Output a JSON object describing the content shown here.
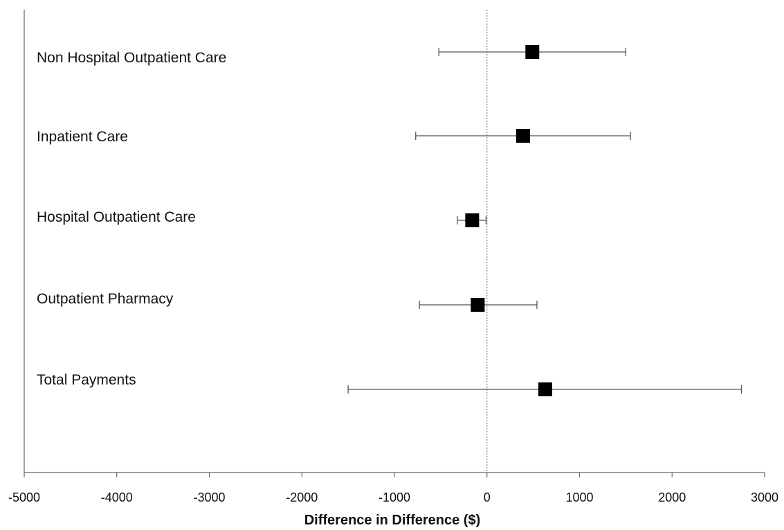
{
  "chart_data": {
    "type": "scatter",
    "subtype": "forest-plot",
    "title": "",
    "xlabel": "Difference in Difference ($)",
    "ylabel": "",
    "xlim": [
      -5000,
      3000
    ],
    "xticks": [
      -5000,
      -4000,
      -3000,
      -2000,
      -1000,
      0,
      1000,
      2000,
      3000
    ],
    "tick_labels": [
      "-5000",
      "-4000",
      "-3000",
      "-2000",
      "-1000",
      "0",
      "1000",
      "2000",
      "3000"
    ],
    "reference_line": {
      "x": 0,
      "style": "dotted"
    },
    "grid": false,
    "legend": "none",
    "categories": [
      "Non Hospital Outpatient Care",
      "Inpatient Care",
      "Hospital Outpatient Care",
      "Outpatient Pharmacy",
      "Total Payments"
    ],
    "estimates": [
      490,
      390,
      -160,
      -100,
      630
    ],
    "ci_lower": [
      -520,
      -770,
      -320,
      -730,
      -1500
    ],
    "ci_upper": [
      1500,
      1550,
      -10,
      540,
      2750
    ],
    "marker": {
      "shape": "square",
      "color": "#000000"
    },
    "line_color": "#555555"
  }
}
